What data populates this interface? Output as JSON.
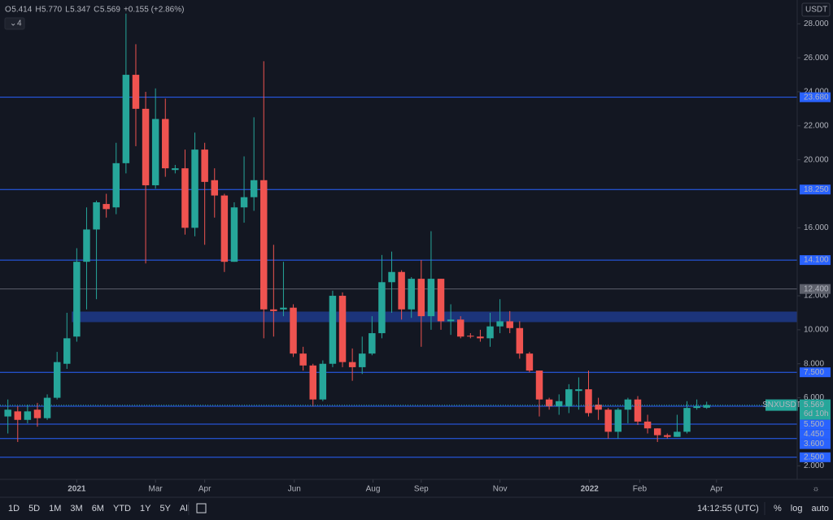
{
  "chart_data": {
    "type": "candlestick",
    "symbol": "SNXUSDT",
    "currency": "USDT",
    "x": [
      0,
      1,
      2,
      3,
      4,
      5,
      6,
      7,
      8,
      9,
      10,
      11,
      12,
      13,
      14,
      15,
      16,
      17,
      18,
      19,
      20,
      21,
      22,
      23,
      24,
      25,
      26,
      27,
      28,
      29,
      30,
      31,
      32,
      33,
      34,
      35,
      36,
      37,
      38,
      39,
      40,
      41,
      42,
      43,
      44,
      45,
      46,
      47,
      48,
      49,
      50,
      51,
      52,
      53,
      54,
      55,
      56,
      57,
      58,
      59,
      60,
      61,
      62,
      63,
      64,
      65,
      66,
      67,
      68,
      69,
      70,
      71
    ],
    "open": [
      4.9,
      5.2,
      4.7,
      5.3,
      4.8,
      6.0,
      8.0,
      9.6,
      14.0,
      15.9,
      17.4,
      17.2,
      19.8,
      25.0,
      23.0,
      18.5,
      22.4,
      19.4,
      19.5,
      16.0,
      20.6,
      18.8,
      17.9,
      14.0,
      17.2,
      17.8,
      18.8,
      11.2,
      11.2,
      11.3,
      8.6,
      7.9,
      5.9,
      8.0,
      12.0,
      8.1,
      7.8,
      8.6,
      9.8,
      12.8,
      13.4,
      11.2,
      13.0,
      10.8,
      13.0,
      10.5,
      10.6,
      9.65,
      9.6,
      9.5,
      10.2,
      10.5,
      10.1,
      8.6,
      7.6,
      5.9,
      5.5,
      5.5,
      6.4,
      6.5,
      5.6,
      5.3,
      4.0,
      5.3,
      5.9,
      4.6,
      4.2,
      3.8,
      3.7,
      4.0,
      5.4,
      5.414
    ],
    "high": [
      5.9,
      5.5,
      5.6,
      5.7,
      6.2,
      8.7,
      11.0,
      14.8,
      17.2,
      17.6,
      18.0,
      21.0,
      28.6,
      26.8,
      24.0,
      24.2,
      23.6,
      19.7,
      20.6,
      21.6,
      21.0,
      19.5,
      18.0,
      17.5,
      20.2,
      22.5,
      25.8,
      15.0,
      14.0,
      11.5,
      9.0,
      8.0,
      8.2,
      12.3,
      12.2,
      8.9,
      9.6,
      10.8,
      14.4,
      14.6,
      13.5,
      13.1,
      14.1,
      15.8,
      13.0,
      11.5,
      10.8,
      9.8,
      10.0,
      11.0,
      11.8,
      11.1,
      10.5,
      8.7,
      7.6,
      6.0,
      6.2,
      6.8,
      7.2,
      7.6,
      6.0,
      5.4,
      5.4,
      6.0,
      6.1,
      5.0,
      4.2,
      3.9,
      5.0,
      5.8,
      5.9,
      5.77
    ],
    "low": [
      3.9,
      3.4,
      4.5,
      4.3,
      4.7,
      5.9,
      7.7,
      9.3,
      11.2,
      11.8,
      16.6,
      16.8,
      19.2,
      20.8,
      13.9,
      18.3,
      19.0,
      19.2,
      15.6,
      15.5,
      15.0,
      16.6,
      13.4,
      14.0,
      16.3,
      17.0,
      9.5,
      9.6,
      10.8,
      8.4,
      7.6,
      5.5,
      5.8,
      7.8,
      7.8,
      7.0,
      7.4,
      8.5,
      9.5,
      11.0,
      10.6,
      10.7,
      9.0,
      10.0,
      10.0,
      9.7,
      9.5,
      9.5,
      9.3,
      9.0,
      9.8,
      9.8,
      8.3,
      7.5,
      4.9,
      5.3,
      5.0,
      5.1,
      5.3,
      4.9,
      4.7,
      3.6,
      3.6,
      4.5,
      4.4,
      3.9,
      3.4,
      3.6,
      3.7,
      3.9,
      5.3,
      5.347
    ],
    "close": [
      5.3,
      4.7,
      5.2,
      4.8,
      6.0,
      8.1,
      9.5,
      14.0,
      15.9,
      17.5,
      17.1,
      19.8,
      25.0,
      23.0,
      18.5,
      22.4,
      19.5,
      19.5,
      16.0,
      20.6,
      18.7,
      17.9,
      14.0,
      17.2,
      17.8,
      18.8,
      11.2,
      11.1,
      11.3,
      8.6,
      7.9,
      5.9,
      8.0,
      12.0,
      8.1,
      7.8,
      8.6,
      9.8,
      12.8,
      13.4,
      11.2,
      13.0,
      10.8,
      13.0,
      10.5,
      10.6,
      9.6,
      9.6,
      9.5,
      10.2,
      10.5,
      10.1,
      8.6,
      7.6,
      5.9,
      5.5,
      5.8,
      6.5,
      6.5,
      5.1,
      5.3,
      4.0,
      5.3,
      5.9,
      4.6,
      4.2,
      3.8,
      3.7,
      4.0,
      5.4,
      5.5,
      5.569
    ],
    "up_color": "#26a69a",
    "down_color": "#ef5350",
    "xlim": [
      -0.8,
      80.2
    ],
    "ylim": [
      1.2,
      29.4
    ],
    "xticks": [
      {
        "value": 7,
        "label": "2021"
      },
      {
        "value": 15,
        "label": "Mar"
      },
      {
        "value": 20,
        "label": "Apr"
      },
      {
        "value": 29.1,
        "label": "Jun"
      },
      {
        "value": 37.1,
        "label": "Aug"
      },
      {
        "value": 42,
        "label": "Sep"
      },
      {
        "value": 50,
        "label": "Nov"
      },
      {
        "value": 59.1,
        "label": "2022"
      },
      {
        "value": 64.2,
        "label": "Feb"
      },
      {
        "value": 72,
        "label": "Apr"
      }
    ],
    "yticks": [
      {
        "value": 2,
        "label": "2.000"
      },
      {
        "value": 6,
        "label": "6.000"
      },
      {
        "value": 8,
        "label": "8.000"
      },
      {
        "value": 10,
        "label": "10.000"
      },
      {
        "value": 12,
        "label": "12.000"
      },
      {
        "value": 16,
        "label": "16.000"
      },
      {
        "value": 20,
        "label": "20.000"
      },
      {
        "value": 22,
        "label": "22.000"
      },
      {
        "value": 24,
        "label": "24.000"
      },
      {
        "value": 26,
        "label": "26.000"
      },
      {
        "value": 28,
        "label": "28.000"
      }
    ],
    "zone": [
      10.45,
      11.07
    ],
    "zone_color": "#1e3a8a",
    "levels": [
      {
        "value": 23.68,
        "label": "23.680",
        "color": "#2962ff"
      },
      {
        "value": 18.25,
        "label": "18.250",
        "color": "#2962ff"
      },
      {
        "value": 14.1,
        "label": "14.100",
        "color": "#2962ff"
      },
      {
        "value": 12.4,
        "label": "12.400",
        "color": "#5d606b"
      },
      {
        "value": 7.5,
        "label": "7.500",
        "color": "#2962ff"
      },
      {
        "value": 5.5,
        "label": "5.500",
        "color": "#2962ff"
      },
      {
        "value": 4.45,
        "label": "4.450",
        "color": "#2962ff"
      },
      {
        "value": 3.6,
        "label": "3.600",
        "color": "#2962ff"
      },
      {
        "value": 2.5,
        "label": "2.500",
        "color": "#2962ff"
      }
    ],
    "last_price": {
      "value": 5.569,
      "label": "5.569"
    },
    "countdown": "6d 10h"
  },
  "ui": {
    "ohlc": [
      "O",
      "5.414",
      "H",
      "5.770",
      "L",
      "5.347",
      "C",
      "5.569",
      "+0.155 (+2.86%)"
    ],
    "indicator_count": "4",
    "ranges": [
      "1D",
      "5D",
      "1M",
      "3M",
      "6M",
      "YTD",
      "1Y",
      "5Y",
      "All"
    ],
    "clock": "14:12:55 (UTC)",
    "options": [
      "%",
      "log",
      "auto"
    ]
  }
}
